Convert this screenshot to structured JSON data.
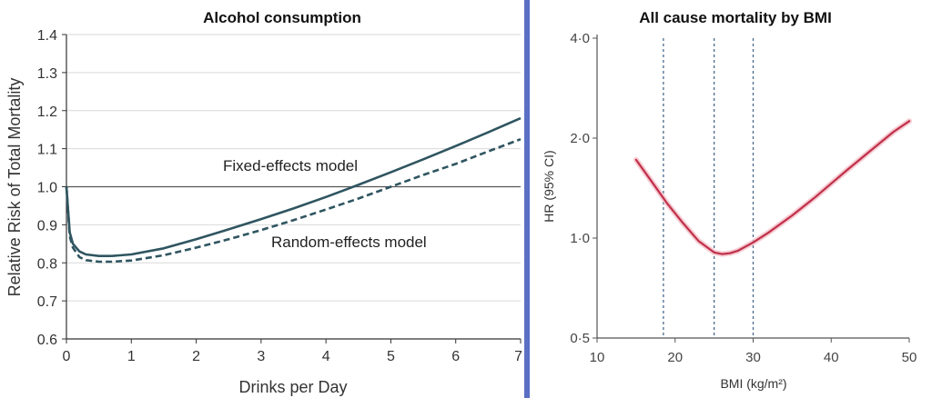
{
  "chart_data": [
    {
      "type": "line",
      "title": "Alcohol consumption",
      "xlabel": "Drinks per Day",
      "ylabel": "Relative Risk of Total Mortality",
      "xlim": [
        0,
        7
      ],
      "ylim": [
        0.6,
        1.4
      ],
      "x_ticks": [
        "0",
        "1",
        "2",
        "3",
        "4",
        "5",
        "6",
        "7"
      ],
      "y_ticks": [
        "0.6",
        "0.7",
        "0.8",
        "0.9",
        "1.0",
        "1.1",
        "1.2",
        "1.3",
        "1.4"
      ],
      "grid": true,
      "reference_line": 1.0,
      "series": [
        {
          "name": "Fixed-effects model",
          "style": "solid",
          "color": "#2f5560",
          "x": [
            0,
            0.05,
            0.1,
            0.2,
            0.3,
            0.5,
            0.7,
            1,
            1.5,
            2,
            2.5,
            3,
            3.5,
            4,
            4.5,
            5,
            5.5,
            6,
            6.5,
            7
          ],
          "y": [
            1.0,
            0.88,
            0.85,
            0.83,
            0.822,
            0.818,
            0.818,
            0.822,
            0.838,
            0.862,
            0.888,
            0.915,
            0.943,
            0.973,
            1.005,
            1.038,
            1.072,
            1.107,
            1.143,
            1.18
          ]
        },
        {
          "name": "Random-effects model",
          "style": "dashed",
          "color": "#2f5560",
          "x": [
            0,
            0.05,
            0.1,
            0.2,
            0.3,
            0.5,
            0.7,
            1,
            1.5,
            2,
            2.5,
            3,
            3.5,
            4,
            4.5,
            5,
            5.5,
            6,
            6.5,
            7
          ],
          "y": [
            1.0,
            0.87,
            0.84,
            0.815,
            0.807,
            0.803,
            0.803,
            0.806,
            0.82,
            0.84,
            0.862,
            0.886,
            0.912,
            0.94,
            0.969,
            1.0,
            1.031,
            1.06,
            1.093,
            1.125
          ]
        }
      ]
    },
    {
      "type": "line",
      "title": "All cause mortality by BMI",
      "xlabel": "BMI (kg/m²)",
      "ylabel": "HR (95% CI)",
      "xlim": [
        10,
        50
      ],
      "ylim": [
        0.5,
        4.0
      ],
      "y_scale": "log",
      "x_ticks": [
        "10",
        "20",
        "30",
        "40",
        "50"
      ],
      "y_ticks": [
        {
          "value": 0.5,
          "label": "0·5"
        },
        {
          "value": 1.0,
          "label": "1·0"
        },
        {
          "value": 2.0,
          "label": "2·0"
        },
        {
          "value": 4.0,
          "label": "4·0"
        }
      ],
      "vertical_reference_lines": [
        18.5,
        25,
        30
      ],
      "series": [
        {
          "color": "#c0304a",
          "x": [
            15,
            17,
            19,
            21,
            23,
            25,
            26,
            27,
            28,
            30,
            32,
            35,
            38,
            40,
            42,
            45,
            48,
            50
          ],
          "y": [
            1.72,
            1.48,
            1.27,
            1.11,
            0.98,
            0.905,
            0.895,
            0.9,
            0.915,
            0.97,
            1.04,
            1.17,
            1.33,
            1.46,
            1.6,
            1.83,
            2.09,
            2.25
          ]
        }
      ]
    }
  ]
}
